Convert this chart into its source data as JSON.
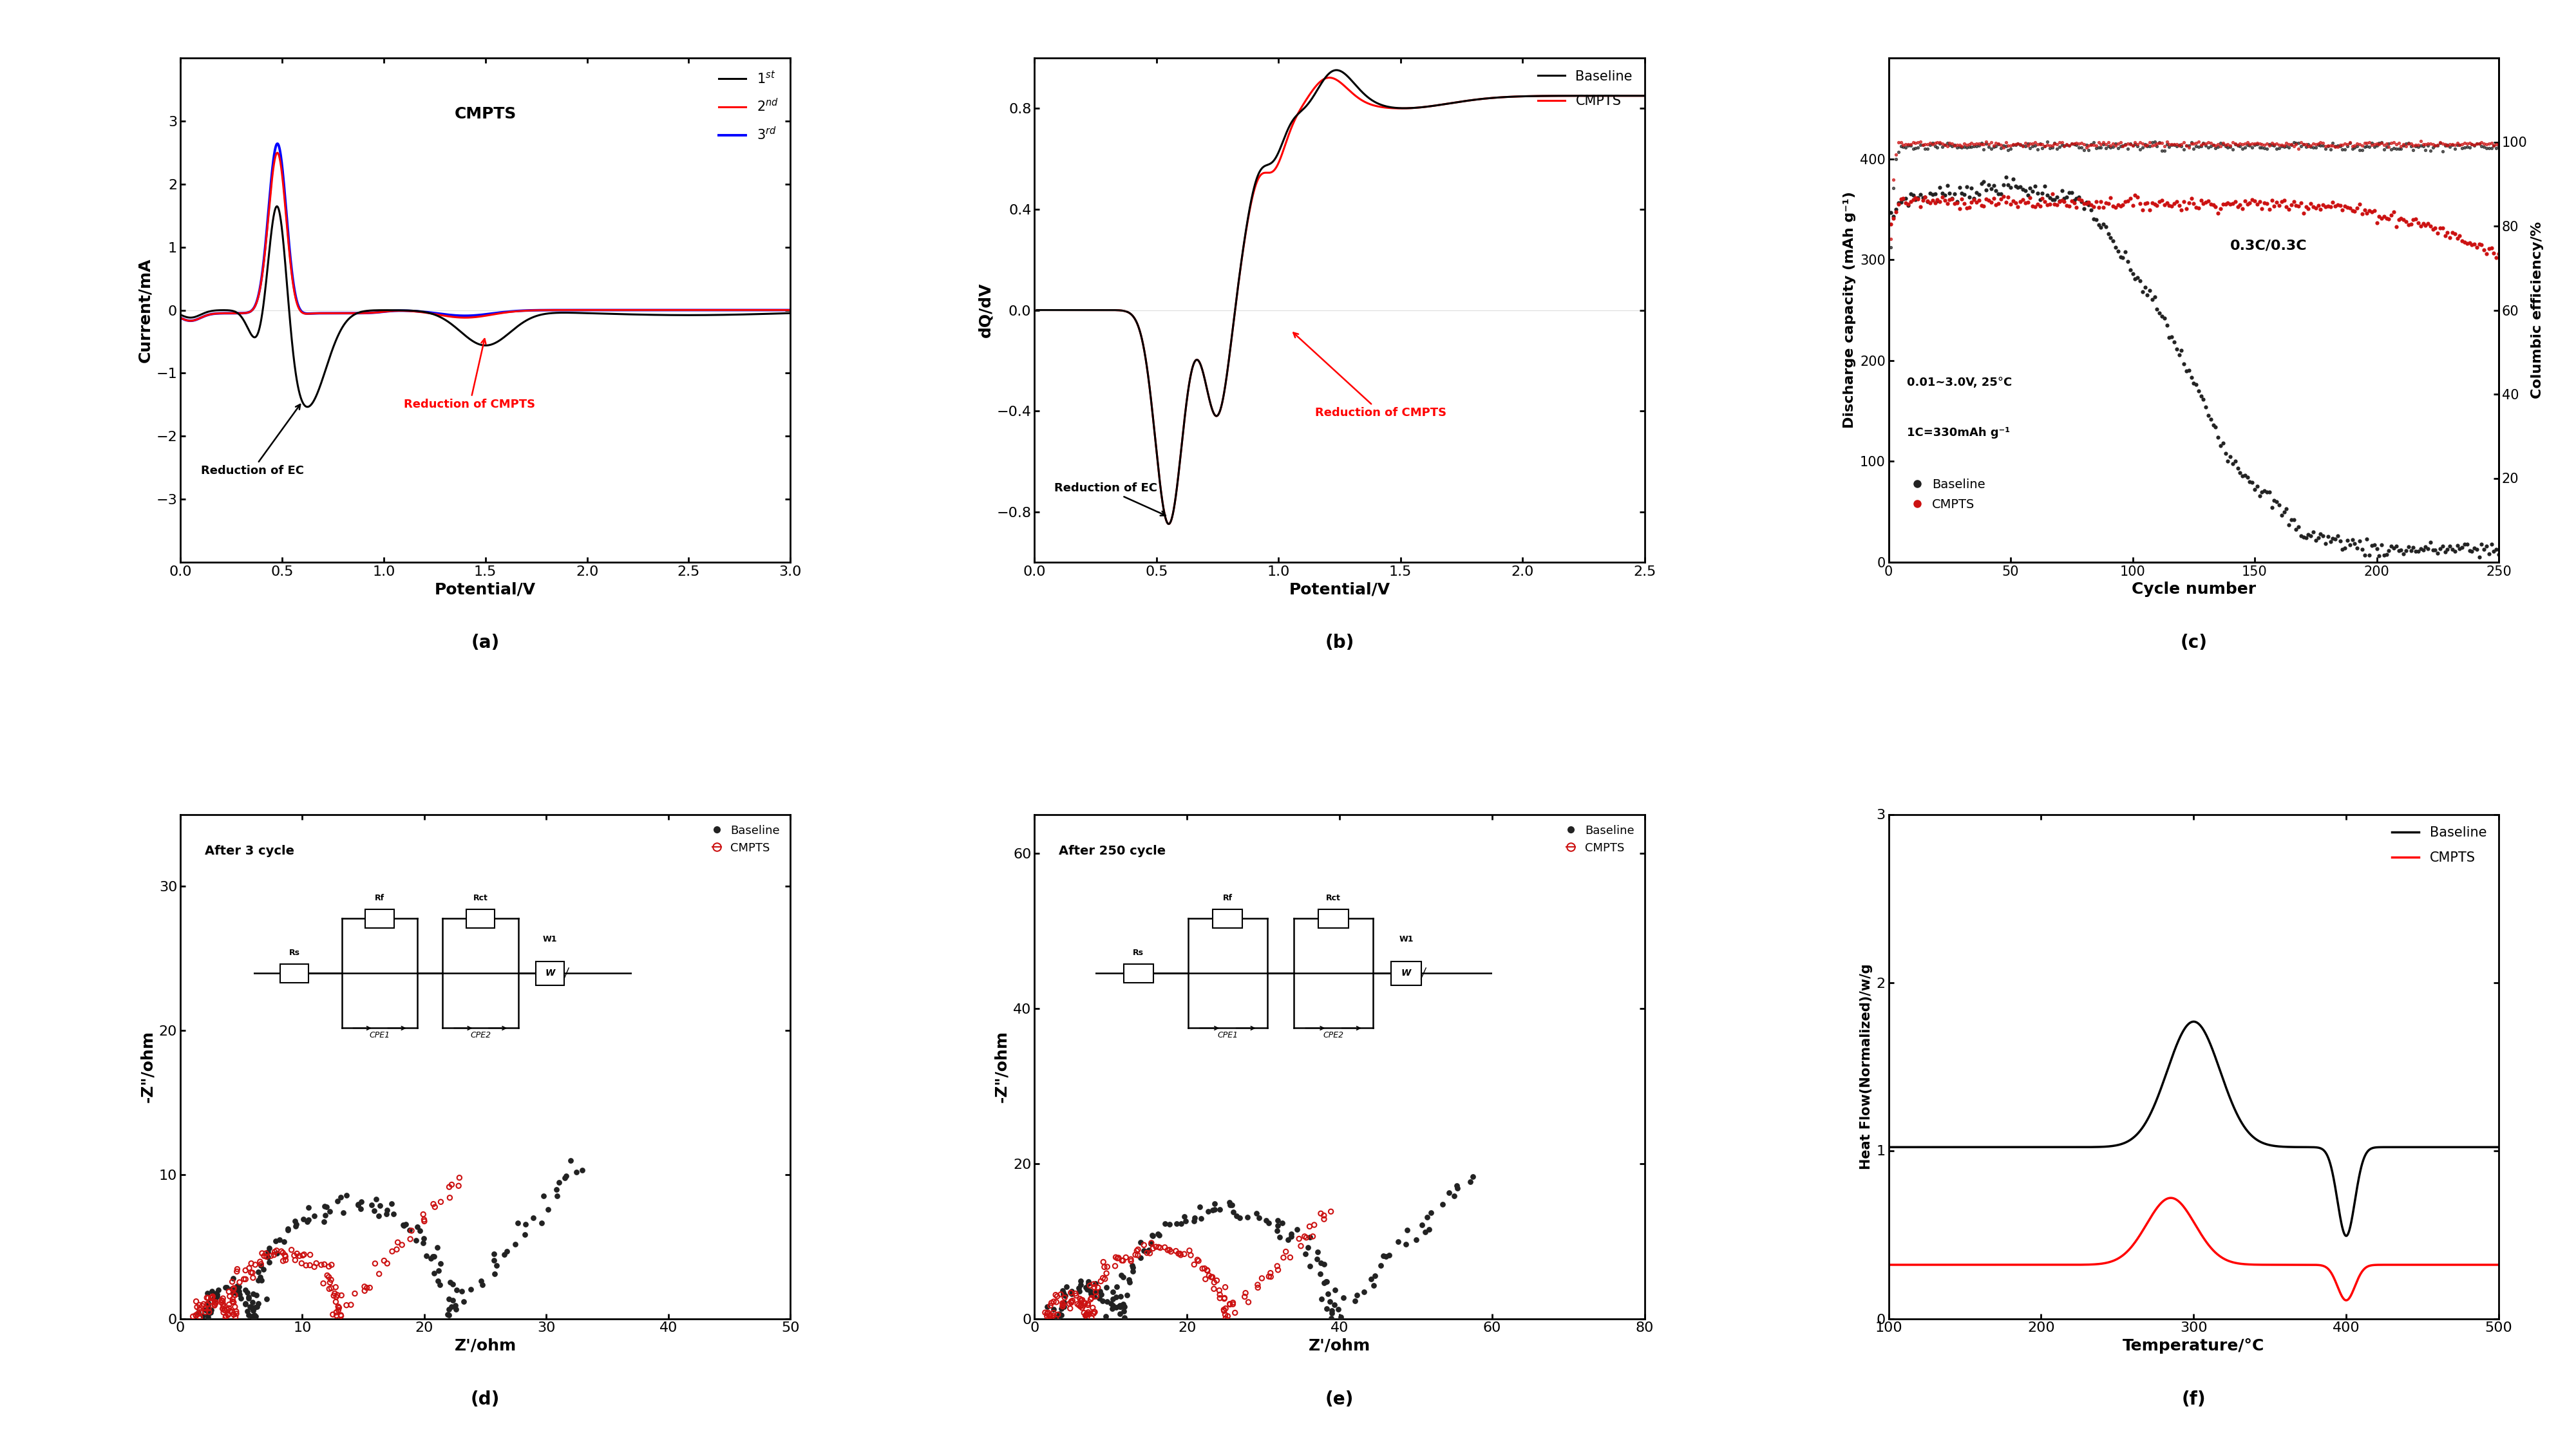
{
  "fig_width": 40.0,
  "fig_height": 22.5,
  "background_color": "#ffffff",
  "panel_a": {
    "title": "CMPTS",
    "xlabel": "Potential/V",
    "ylabel": "Current/mA",
    "xlim": [
      0,
      3.0
    ],
    "ylim": [
      -4,
      4
    ],
    "yticks": [
      -3,
      -2,
      -1,
      0,
      1,
      2,
      3
    ],
    "xticks": [
      0.0,
      0.5,
      1.0,
      1.5,
      2.0,
      2.5,
      3.0
    ],
    "label": "(a)",
    "legend": [
      "1st",
      "2nd",
      "3rd"
    ],
    "colors": [
      "#000000",
      "#ff0000",
      "#0000ff"
    ]
  },
  "panel_b": {
    "xlabel": "Potential/V",
    "ylabel": "dQ/dV",
    "xlim": [
      0,
      2.5
    ],
    "ylim": [
      -1.0,
      1.0
    ],
    "yticks": [
      -0.8,
      -0.4,
      0.0,
      0.4,
      0.8
    ],
    "xticks": [
      0.0,
      0.5,
      1.0,
      1.5,
      2.0,
      2.5
    ],
    "label": "(b)",
    "legend": [
      "Baseline",
      "CMPTS"
    ],
    "colors": [
      "#000000",
      "#ff0000"
    ]
  },
  "panel_c": {
    "xlabel": "Cycle number",
    "ylabel": "Discharge capacity (mAh g⁻¹)",
    "ylabel2": "Columbic efficiency/%",
    "xlim": [
      0,
      250
    ],
    "ylim": [
      0,
      500
    ],
    "ylim2": [
      0,
      120
    ],
    "yticks": [
      0,
      100,
      200,
      300,
      400
    ],
    "yticks2": [
      20,
      40,
      60,
      80,
      100
    ],
    "xticks": [
      0,
      50,
      100,
      150,
      200,
      250
    ],
    "label": "(c)",
    "text1": "0.3C/0.3C",
    "text2": "0.01~3.0V, 25°C",
    "text3": "1C=330mAh g⁻¹",
    "legend": [
      "Baseline",
      "CMPTS"
    ],
    "colors": [
      "#222222",
      "#cc1111"
    ]
  },
  "panel_d": {
    "xlabel": "Z'/ohm",
    "ylabel": "-Z\"/ohm",
    "xlim": [
      0,
      50
    ],
    "ylim": [
      0,
      35
    ],
    "yticks": [
      0,
      10,
      20,
      30
    ],
    "xticks": [
      0,
      10,
      20,
      30,
      40,
      50
    ],
    "label": "(d)",
    "title_text": "After 3 cycle",
    "legend": [
      "Baseline",
      "CMPTS"
    ],
    "colors": [
      "#222222",
      "#cc1111"
    ]
  },
  "panel_e": {
    "xlabel": "Z'/ohm",
    "ylabel": "-Z\"/ohm",
    "xlim": [
      0,
      80
    ],
    "ylim": [
      0,
      65
    ],
    "yticks": [
      0,
      20,
      40,
      60
    ],
    "xticks": [
      0,
      20,
      40,
      60,
      80
    ],
    "label": "(e)",
    "title_text": "After 250 cycle",
    "legend": [
      "Baseline",
      "CMPTS"
    ],
    "colors": [
      "#222222",
      "#cc1111"
    ]
  },
  "panel_f": {
    "xlabel": "Temperature/°C",
    "ylabel": "Heat Flow(Normalized)/w/g",
    "xlim": [
      100,
      500
    ],
    "ylim": [
      0,
      3.0
    ],
    "yticks": [
      0,
      1,
      2,
      3
    ],
    "xticks": [
      100,
      200,
      300,
      400,
      500
    ],
    "label": "(f)",
    "legend": [
      "Baseline",
      "CMPTS"
    ],
    "colors": [
      "#000000",
      "#ff0000"
    ]
  }
}
